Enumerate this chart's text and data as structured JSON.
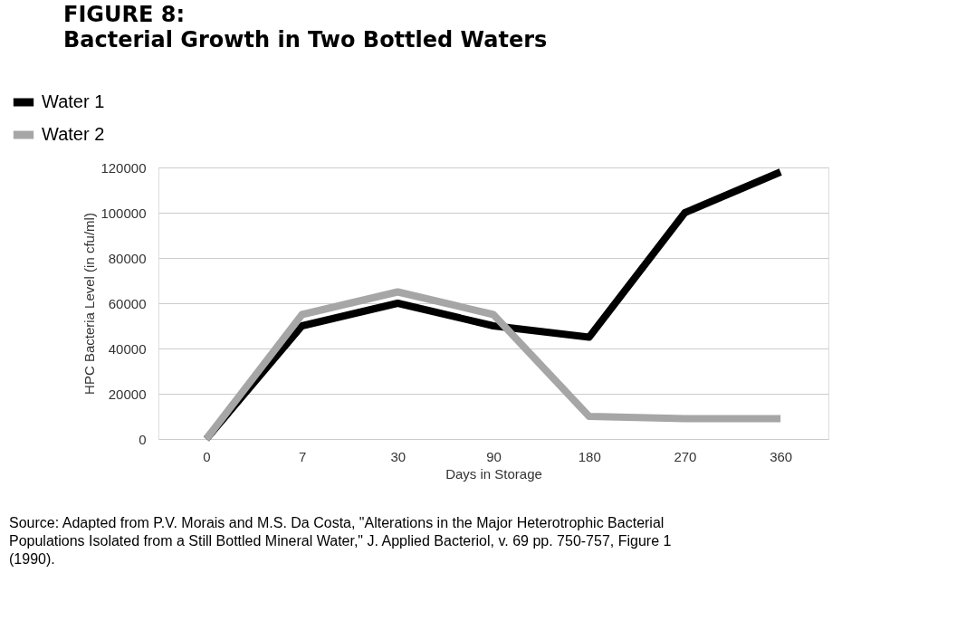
{
  "chart_data": {
    "type": "line",
    "title": "FIGURE 8:\nBacterial Growth in Two Bottled Waters",
    "xlabel": "Days in Storage",
    "ylabel": "HPC Bacteria Level (in cfu/ml)",
    "categories": [
      "0",
      "7",
      "30",
      "90",
      "180",
      "270",
      "360"
    ],
    "series": [
      {
        "name": "Water 1",
        "color": "#000000",
        "values": [
          0,
          50000,
          60000,
          50000,
          45000,
          100000,
          118000
        ]
      },
      {
        "name": "Water 2",
        "color": "#a6a6a6",
        "values": [
          0,
          55000,
          65000,
          55000,
          10000,
          9000,
          9000
        ]
      }
    ],
    "ylim": [
      0,
      120000
    ],
    "yticks": [
      0,
      20000,
      40000,
      60000,
      80000,
      100000,
      120000
    ],
    "grid": "y",
    "legend": "top left",
    "marker": "none",
    "line_style": "solid",
    "annotations": [
      "Source: Adapted from P.V. Morais and M.S. Da Costa, \"Alterations in the Major Heterotrophic Bacterial\nPopulations Isolated from a Still Bottled Mineral Water,\" J. Applied Bacteriol, v. 69 pp. 750-757, Figure 1\n(1990)."
    ]
  }
}
